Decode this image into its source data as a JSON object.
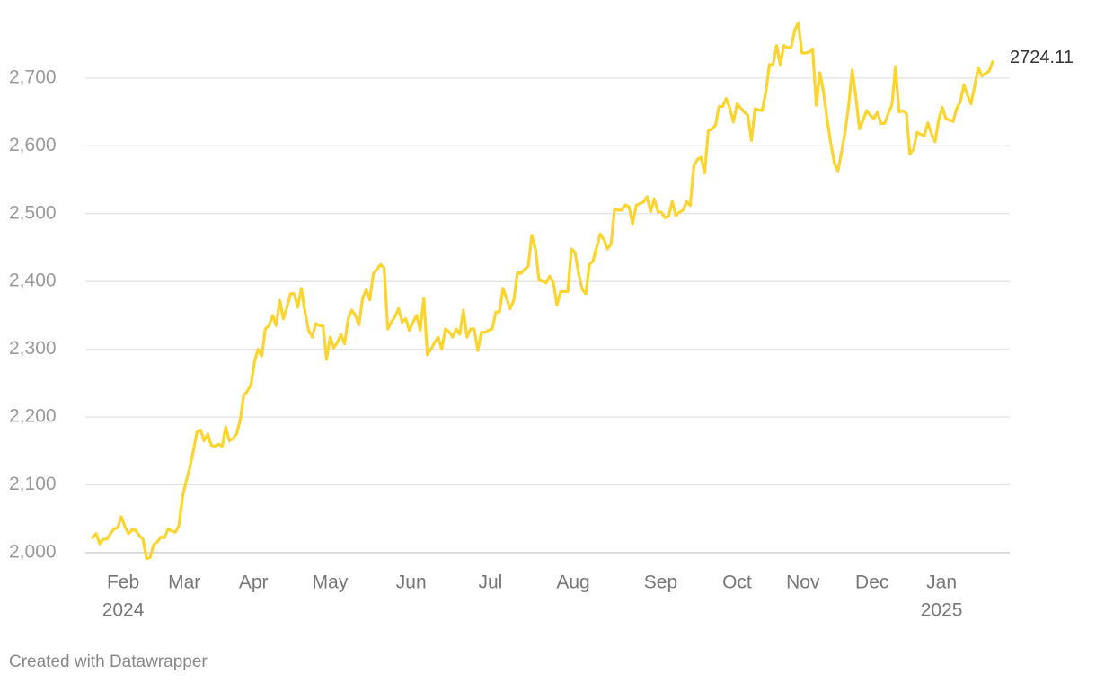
{
  "chart_data": {
    "type": "line",
    "footer": "Created with Datawrapper",
    "color": "#fbd52d",
    "grid": true,
    "ylim": [
      1980,
      2790
    ],
    "yticks": [
      {
        "value": 2000,
        "label": "2,000"
      },
      {
        "value": 2100,
        "label": "2,100"
      },
      {
        "value": 2200,
        "label": "2,200"
      },
      {
        "value": 2300,
        "label": "2,300"
      },
      {
        "value": 2400,
        "label": "2,400"
      },
      {
        "value": 2500,
        "label": "2,500"
      },
      {
        "value": 2600,
        "label": "2,600"
      },
      {
        "value": 2700,
        "label": "2,700"
      }
    ],
    "xlim": [
      0,
      250
    ],
    "xticks": [
      {
        "value": 8.5,
        "label": "Feb",
        "sublabel": "2024"
      },
      {
        "value": 25.5,
        "label": "Mar"
      },
      {
        "value": 44.7,
        "label": "Apr"
      },
      {
        "value": 66,
        "label": "May"
      },
      {
        "value": 88.5,
        "label": "Jun"
      },
      {
        "value": 110.5,
        "label": "Jul"
      },
      {
        "value": 133.5,
        "label": "Aug"
      },
      {
        "value": 157.8,
        "label": "Sep"
      },
      {
        "value": 179,
        "label": "Oct"
      },
      {
        "value": 197.3,
        "label": "Nov"
      },
      {
        "value": 216.5,
        "label": "Dec"
      },
      {
        "value": 235.8,
        "label": "Jan",
        "sublabel": "2025"
      }
    ],
    "values": [
      2022,
      2028,
      2013,
      2020,
      2020,
      2028,
      2035,
      2037,
      2053,
      2038,
      2028,
      2034,
      2033,
      2025,
      2020,
      1991,
      1993,
      2012,
      2016,
      2023,
      2022,
      2035,
      2032,
      2030,
      2040,
      2083,
      2105,
      2125,
      2150,
      2178,
      2181,
      2165,
      2175,
      2158,
      2157,
      2160,
      2157,
      2185,
      2165,
      2168,
      2175,
      2195,
      2232,
      2238,
      2248,
      2282,
      2300,
      2290,
      2330,
      2335,
      2350,
      2335,
      2372,
      2345,
      2362,
      2382,
      2382,
      2362,
      2390,
      2355,
      2328,
      2318,
      2338,
      2335,
      2335,
      2285,
      2318,
      2302,
      2310,
      2322,
      2308,
      2345,
      2358,
      2350,
      2336,
      2375,
      2388,
      2373,
      2412,
      2418,
      2425,
      2420,
      2330,
      2340,
      2348,
      2360,
      2340,
      2345,
      2328,
      2340,
      2350,
      2328,
      2375,
      2292,
      2300,
      2310,
      2318,
      2300,
      2330,
      2326,
      2318,
      2330,
      2322,
      2358,
      2318,
      2330,
      2330,
      2298,
      2325,
      2325,
      2328,
      2330,
      2355,
      2355,
      2390,
      2375,
      2360,
      2372,
      2413,
      2412,
      2418,
      2422,
      2468,
      2448,
      2402,
      2400,
      2398,
      2408,
      2398,
      2365,
      2385,
      2385,
      2385,
      2448,
      2443,
      2412,
      2388,
      2382,
      2425,
      2430,
      2450,
      2470,
      2462,
      2448,
      2455,
      2507,
      2505,
      2505,
      2513,
      2510,
      2485,
      2512,
      2515,
      2517,
      2525,
      2503,
      2522,
      2503,
      2502,
      2494,
      2496,
      2518,
      2497,
      2502,
      2505,
      2518,
      2512,
      2570,
      2580,
      2583,
      2560,
      2622,
      2625,
      2630,
      2658,
      2658,
      2670,
      2655,
      2635,
      2662,
      2656,
      2650,
      2645,
      2608,
      2655,
      2653,
      2652,
      2680,
      2720,
      2720,
      2748,
      2720,
      2748,
      2745,
      2745,
      2770,
      2782,
      2737,
      2737,
      2738,
      2743,
      2660,
      2708,
      2680,
      2640,
      2605,
      2575,
      2563,
      2590,
      2620,
      2660,
      2712,
      2672,
      2625,
      2638,
      2652,
      2645,
      2640,
      2650,
      2633,
      2633,
      2648,
      2660,
      2717,
      2650,
      2652,
      2648,
      2588,
      2595,
      2620,
      2617,
      2615,
      2634,
      2618,
      2606,
      2638,
      2657,
      2640,
      2638,
      2636,
      2655,
      2665,
      2690,
      2675,
      2662,
      2688,
      2715,
      2703,
      2707,
      2710,
      2724.11
    ]
  }
}
